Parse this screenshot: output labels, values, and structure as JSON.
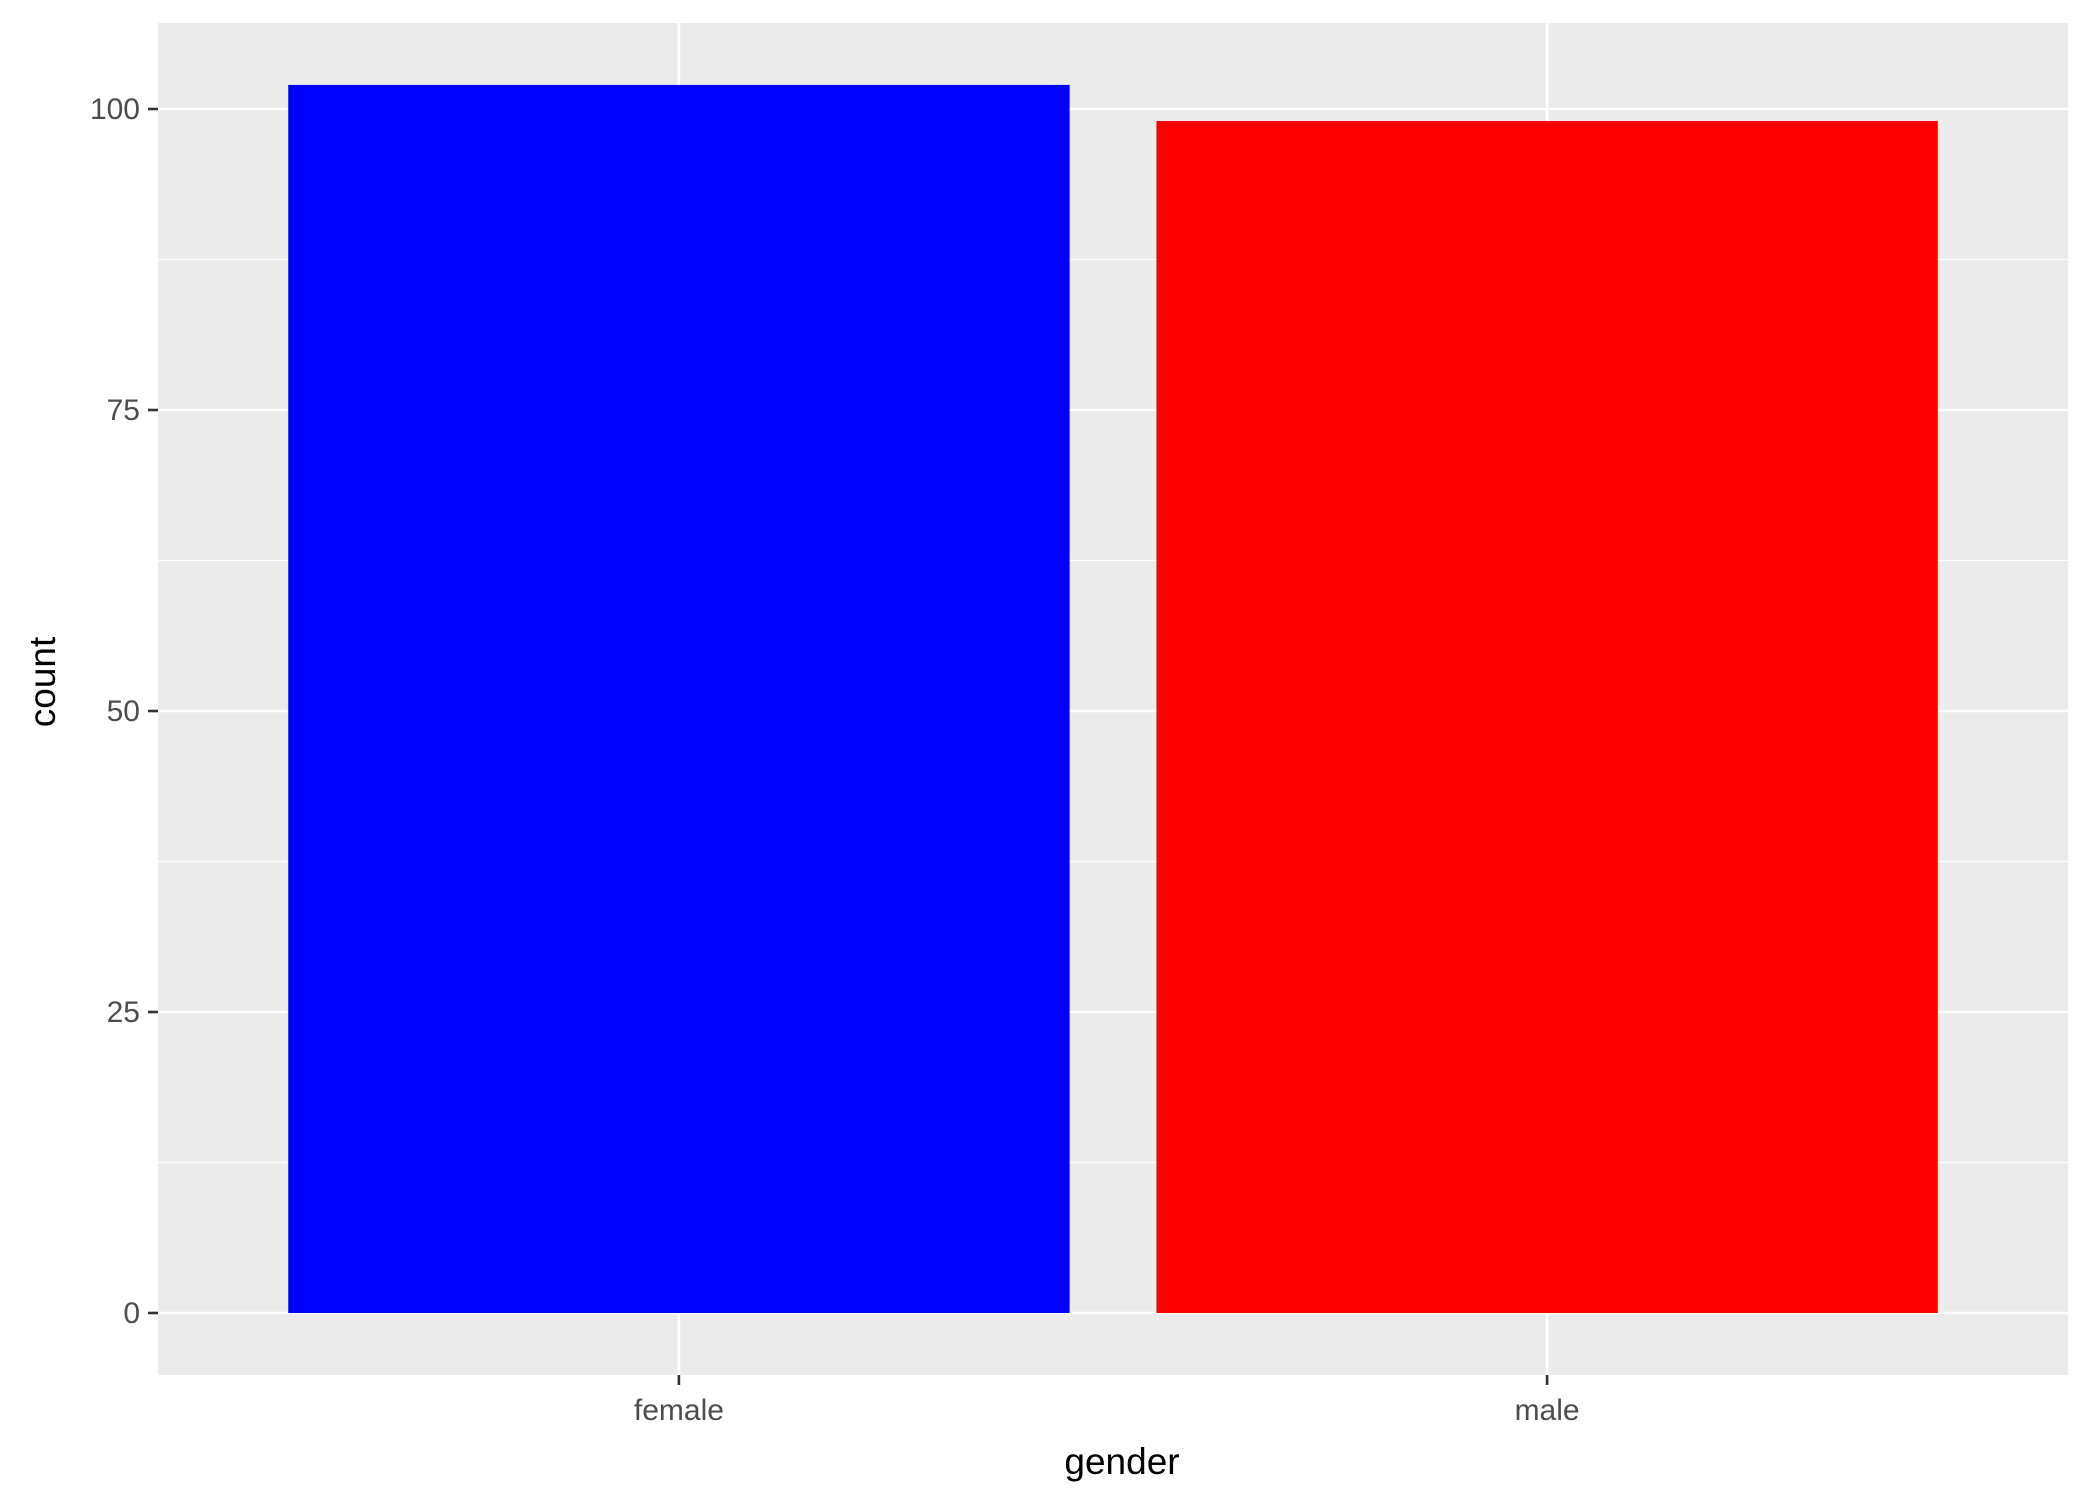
{
  "chart_data": {
    "type": "bar",
    "categories": [
      "female",
      "male"
    ],
    "values": [
      102,
      99
    ],
    "colors": [
      "#0000FF",
      "#FF0000"
    ],
    "xlabel": "gender",
    "ylabel": "count",
    "ylim": [
      -4.5,
      107
    ],
    "y_ticks": [
      0,
      25,
      50,
      75,
      100
    ],
    "y_tick_labels": [
      "0",
      "25",
      "50",
      "75",
      "100"
    ],
    "y_minor_ticks": [
      12.5,
      37.5,
      62.5,
      87.5
    ],
    "panel_background": "#EBEBEB",
    "grid_color": "#FFFFFF",
    "tick_color": "#333333",
    "grid": true,
    "legend": "none"
  }
}
